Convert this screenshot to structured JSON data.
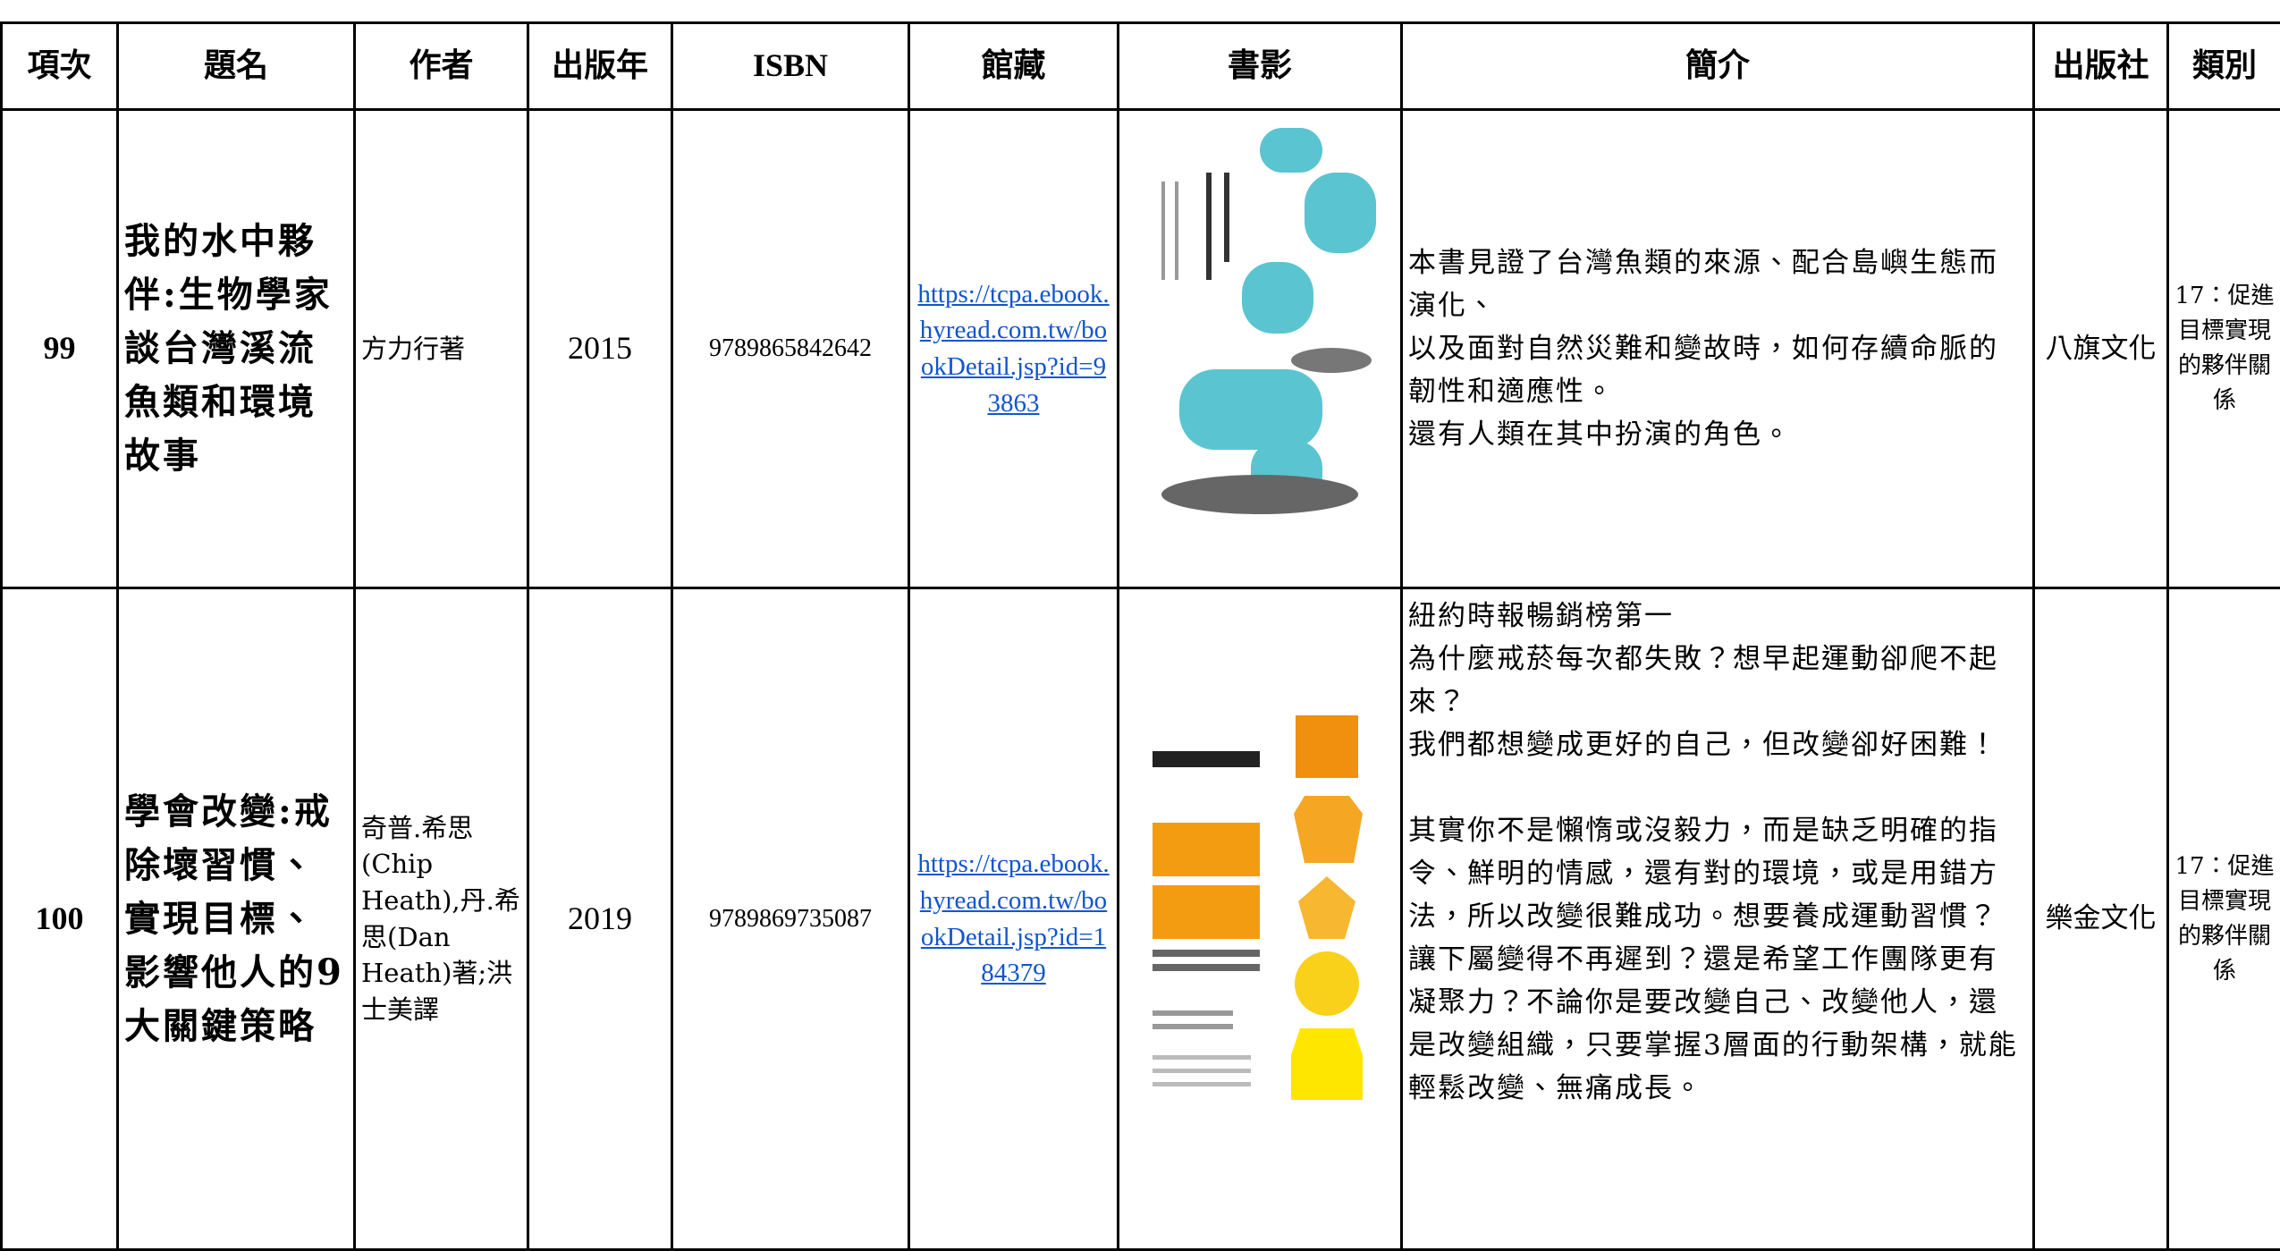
{
  "table": {
    "headers": [
      "項次",
      "題名",
      "作者",
      "出版年",
      "ISBN",
      "館藏",
      "書影",
      "簡介",
      "出版社",
      "類別"
    ],
    "rows": [
      {
        "index": "99",
        "title": "我的水中夥伴:生物學家談台灣溪流魚類和環境故事",
        "author": "方力行著",
        "year": "2015",
        "isbn": "9789865842642",
        "link": "https://tcpa.ebook.hyread.com.tw/bookDetail.jsp?id=93863",
        "summary": [
          "本書見證了台灣魚類的來源、配合島嶼生態而演化、",
          "以及面對自然災難和變故時，如何存續命脈的韌性和適應性。",
          "還有人類在其中扮演的角色。"
        ],
        "publisher": "八旗文化",
        "category": "17：促進目標實現的夥伴關係"
      },
      {
        "index": "100",
        "title": "學會改變:戒除壞習慣、實現目標、影響他人的9大關鍵策略",
        "author": "奇普.希思(Chip Heath),丹.希思(Dan Heath)著;洪士美譯",
        "year": "2019",
        "isbn": "9789869735087",
        "link": "https://tcpa.ebook.hyread.com.tw/bookDetail.jsp?id=184379",
        "summary": [
          "紐約時報暢銷榜第一",
          "為什麼戒菸每次都失敗？想早起運動卻爬不起來？",
          "我們都想變成更好的自己，但改變卻好困難！",
          "其實你不是懶惰或沒毅力，而是缺乏明確的指令、鮮明的情感，還有對的環境，或是用錯方法，所以改變很難成功。想要養成運動習慣？讓下屬變得不再遲到？還是希望工作團隊更有凝聚力？不論你是要改變自己、改變他人，還是改變組織，只要掌握3層面的行動架構，就能輕鬆改變、無痛成長。"
        ],
        "publisher": "樂金文化",
        "category": "17：促進目標實現的夥伴關係"
      }
    ]
  }
}
